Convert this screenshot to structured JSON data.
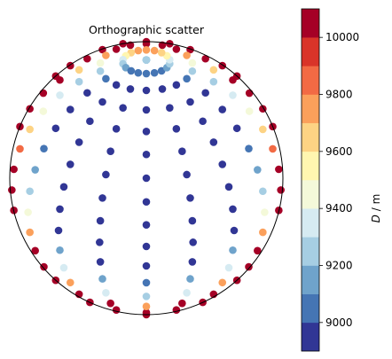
{
  "chart_data": {
    "type": "scatter",
    "title": "Orthographic scatter",
    "projection": "orthographic",
    "colorbar": {
      "label_main": "D",
      "label_unit": " / m",
      "ticks": [
        9000,
        9200,
        9400,
        9600,
        9800,
        10000
      ],
      "tick_labels": [
        "9000",
        "9200",
        "9400",
        "9600",
        "9800",
        "10000"
      ],
      "range": [
        8900,
        10100
      ],
      "levels": [
        8900,
        9000,
        9100,
        9200,
        9300,
        9400,
        9500,
        9600,
        9700,
        9800,
        9900,
        10000,
        10100
      ],
      "colors": [
        "#313695",
        "#4575b4",
        "#74add1",
        "#abd9e9",
        "#e0f3f8",
        "#ffffbf",
        "#fee090",
        "#fdae61",
        "#f46d43",
        "#d73027",
        "#a50026",
        "#a50026"
      ],
      "band_colors": [
        "#313695",
        "#4575b4",
        "#6fa3cb",
        "#a6cee3",
        "#d6ebf2",
        "#f4f9d9",
        "#fff6b0",
        "#fdd384",
        "#fba05b",
        "#f26a44",
        "#d93429",
        "#a50026"
      ]
    },
    "grid": false,
    "legend": "none",
    "colormap_notes": "diverging red-yellow-blue, reversed",
    "center_lat": 30,
    "center_lon": 0,
    "lat_step": 10,
    "lon_step": 20,
    "depth_model": {
      "base": 8950,
      "edge": 10050
    }
  }
}
